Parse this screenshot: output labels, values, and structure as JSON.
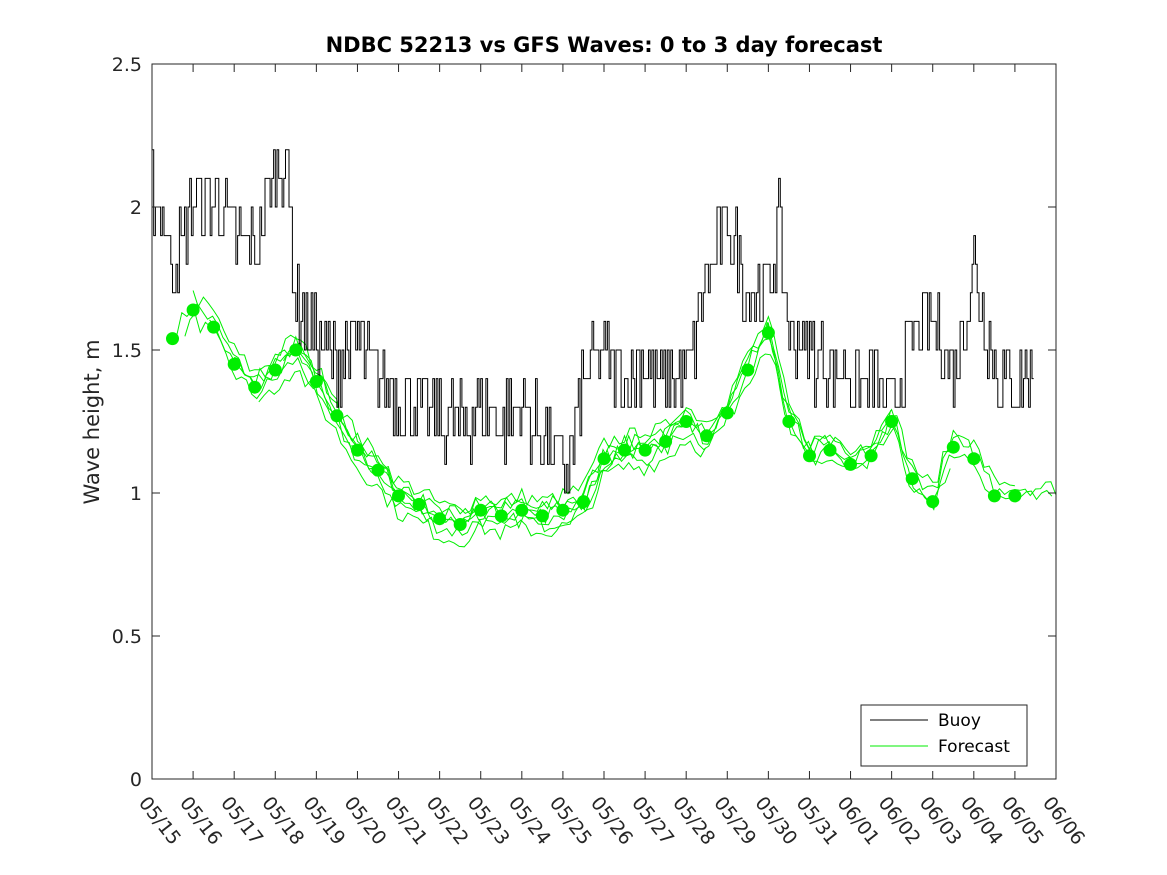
{
  "chart_data": {
    "type": "line",
    "title": "NDBC 52213 vs GFS Waves: 0 to 3 day forecast",
    "xlabel": "",
    "ylabel": "Wave height, m",
    "ylim": [
      0,
      2.5
    ],
    "yticks": [
      0,
      0.5,
      1,
      1.5,
      2,
      2.5
    ],
    "ytick_labels": [
      "0",
      "0.5",
      "1",
      "1.5",
      "2",
      "2.5"
    ],
    "xlim": [
      "05/15",
      "06/06"
    ],
    "xtick_labels": [
      "05/15",
      "05/16",
      "05/17",
      "05/18",
      "05/19",
      "05/20",
      "05/21",
      "05/22",
      "05/23",
      "05/24",
      "05/25",
      "05/26",
      "05/27",
      "05/28",
      "05/29",
      "05/30",
      "05/31",
      "06/01",
      "06/02",
      "06/03",
      "06/04",
      "06/05",
      "06/06"
    ],
    "grid": false,
    "legend": {
      "placement": "bottom-right",
      "entries": [
        "Buoy",
        "Forecast"
      ]
    },
    "colors": {
      "buoy": "#000000",
      "forecast": "#00ee00",
      "axes": "#262626"
    },
    "series": [
      {
        "name": "Buoy",
        "style": "step-line",
        "x_day_offsets": [
          0.0,
          0.5,
          1.0,
          1.5,
          2.0,
          2.5,
          3.0,
          3.25,
          3.5,
          4.0,
          4.5,
          5.0,
          5.5,
          6.0,
          6.5,
          7.0,
          7.5,
          8.0,
          8.5,
          9.0,
          9.5,
          10.0,
          10.25,
          10.5,
          11.0,
          11.5,
          12.0,
          12.5,
          13.0,
          13.5,
          14.0,
          14.5,
          15.0,
          15.25,
          15.5,
          16.0,
          16.5,
          17.0,
          17.5,
          18.0,
          18.5,
          19.0,
          19.5,
          20.0,
          20.5,
          21.0,
          21.5
        ],
        "y": [
          2.1,
          1.8,
          2.0,
          2.05,
          1.9,
          1.85,
          2.15,
          2.2,
          1.65,
          1.55,
          1.45,
          1.55,
          1.4,
          1.35,
          1.3,
          1.25,
          1.25,
          1.3,
          1.25,
          1.3,
          1.2,
          1.1,
          1.15,
          1.4,
          1.5,
          1.4,
          1.45,
          1.4,
          1.4,
          1.75,
          1.95,
          1.7,
          1.7,
          1.95,
          1.55,
          1.5,
          1.45,
          1.4,
          1.4,
          1.3,
          1.55,
          1.6,
          1.4,
          1.8,
          1.45,
          1.35,
          1.45
        ]
      },
      {
        "name": "Forecast",
        "style": "dots",
        "x_day_offsets": [
          0.5,
          1.0,
          1.5,
          2.0,
          2.5,
          3.0,
          3.5,
          4.0,
          4.5,
          5.0,
          5.5,
          6.0,
          6.5,
          7.0,
          7.5,
          8.0,
          8.5,
          9.0,
          9.5,
          10.0,
          10.5,
          11.0,
          11.5,
          12.0,
          12.5,
          13.0,
          13.5,
          14.0,
          14.5,
          15.0,
          15.5,
          16.0,
          16.5,
          17.0,
          17.5,
          18.0,
          18.5,
          19.0,
          19.5,
          20.0,
          20.5,
          21.0
        ],
        "y": [
          1.54,
          1.64,
          1.58,
          1.45,
          1.37,
          1.43,
          1.5,
          1.39,
          1.27,
          1.15,
          1.08,
          0.99,
          0.96,
          0.91,
          0.89,
          0.94,
          0.92,
          0.94,
          0.92,
          0.94,
          0.97,
          1.12,
          1.15,
          1.15,
          1.18,
          1.25,
          1.2,
          1.28,
          1.43,
          1.56,
          1.25,
          1.13,
          1.15,
          1.1,
          1.13,
          1.25,
          1.05,
          0.97,
          1.16,
          1.12,
          0.99,
          0.99
        ]
      }
    ]
  }
}
